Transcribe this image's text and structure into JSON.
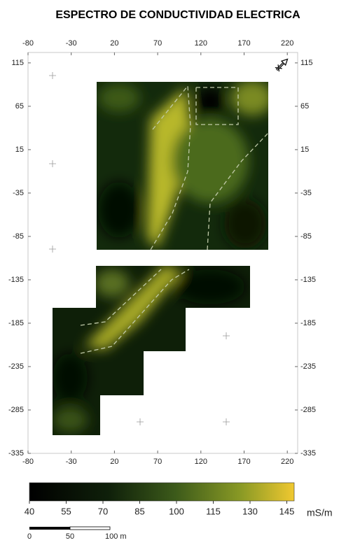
{
  "title": "ESPECTRO DE CONDUCTIVIDAD ELECTRICA",
  "map": {
    "xlim": [
      -80,
      232
    ],
    "ylim": [
      -335,
      127
    ],
    "xticks": [
      -80,
      -30,
      20,
      70,
      120,
      170,
      220
    ],
    "yticks": [
      115,
      65,
      15,
      -35,
      -85,
      -135,
      -185,
      -235,
      -285,
      -335
    ]
  },
  "colorbar": {
    "lim": [
      40,
      148
    ],
    "ticks": [
      40,
      55,
      70,
      85,
      100,
      115,
      130,
      145
    ],
    "unit": "mS/m"
  },
  "scale_bar": {
    "labels": [
      "0",
      "50",
      "100 m"
    ]
  }
}
